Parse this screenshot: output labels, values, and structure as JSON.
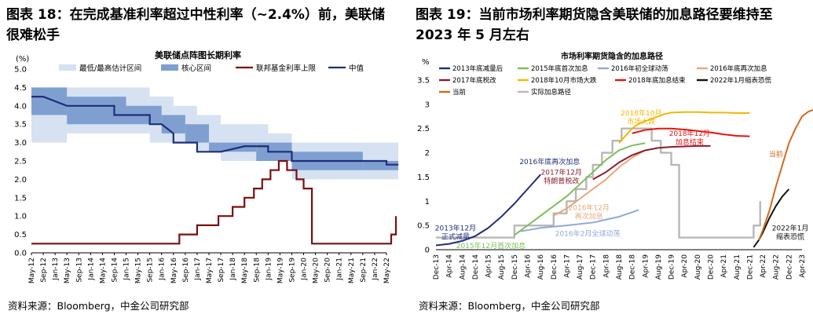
{
  "left": {
    "figure_title": "图表 18：在完成基准利率超过中性利率（~2.4%）前，美联储很难松手",
    "source": "资料来源：Bloomberg，中金公司研究部",
    "chart_data": {
      "type": "line",
      "title": "美联储点阵图长期利率",
      "ylabel": "(%)",
      "ylim": [
        0,
        5
      ],
      "yticks": [
        "0.0",
        "0.5",
        "1.0",
        "1.5",
        "2.0",
        "2.5",
        "3.0",
        "3.5",
        "4.0",
        "4.5",
        "5.0"
      ],
      "xticks": [
        "May-12",
        "Sep-12",
        "Jan-13",
        "May-13",
        "Sep-13",
        "Jan-14",
        "May-14",
        "Sep-14",
        "Jan-15",
        "May-15",
        "Sep-15",
        "Jan-16",
        "May-16",
        "Sep-16",
        "Jan-17",
        "May-17",
        "Sep-17",
        "Jan-18",
        "May-18",
        "Sep-18",
        "Jan-19",
        "May-19",
        "Sep-19",
        "Jan-20",
        "May-20",
        "Sep-20",
        "Jan-21",
        "May-21",
        "Sep-21",
        "Jan-22",
        "May-22"
      ],
      "colors": {
        "range": "#d6e2f2",
        "core": "#7f9fd0",
        "fed": "#7a0f0f",
        "median": "#1f2e7a"
      },
      "legend": [
        "最低/最高估计区间",
        "核心区间",
        "联邦基金利率上限",
        "中值"
      ],
      "series": [
        {
          "name": "最低/最高估计区间",
          "segments": [
            {
              "x": [
                0,
                3
              ],
              "low": 3.0,
              "high": 4.5
            },
            {
              "x": [
                3,
                10
              ],
              "low": 3.25,
              "high": 4.5
            },
            {
              "x": [
                10,
                12
              ],
              "low": 3.0,
              "high": 4.25
            },
            {
              "x": [
                12,
                14
              ],
              "low": 3.0,
              "high": 4.0
            },
            {
              "x": [
                14,
                16
              ],
              "low": 2.75,
              "high": 3.75
            },
            {
              "x": [
                16,
                20
              ],
              "low": 2.5,
              "high": 3.5
            },
            {
              "x": [
                20,
                22
              ],
              "low": 2.5,
              "high": 3.25
            },
            {
              "x": [
                22,
                30
              ],
              "low": 2.0,
              "high": 3.0
            },
            {
              "x": [
                30,
                31
              ],
              "low": 2.0,
              "high": 3.0
            }
          ]
        },
        {
          "name": "核心区间",
          "segments": [
            {
              "x": [
                0,
                3
              ],
              "low": 3.75,
              "high": 4.5
            },
            {
              "x": [
                3,
                8
              ],
              "low": 3.5,
              "high": 4.25
            },
            {
              "x": [
                8,
                11
              ],
              "low": 3.5,
              "high": 4.0
            },
            {
              "x": [
                11,
                13
              ],
              "low": 3.25,
              "high": 3.75
            },
            {
              "x": [
                13,
                15
              ],
              "low": 3.0,
              "high": 3.5
            },
            {
              "x": [
                15,
                19
              ],
              "low": 2.75,
              "high": 3.0
            },
            {
              "x": [
                19,
                22
              ],
              "low": 2.5,
              "high": 3.0
            },
            {
              "x": [
                22,
                28
              ],
              "low": 2.25,
              "high": 2.75
            },
            {
              "x": [
                28,
                31
              ],
              "low": 2.25,
              "high": 2.5
            }
          ]
        },
        {
          "name": "中值",
          "x": [
            0,
            1,
            1,
            3,
            3,
            7,
            7,
            10,
            10,
            11,
            11,
            12,
            12,
            14,
            14,
            16,
            16,
            18,
            18,
            20,
            20,
            22,
            22,
            29,
            29,
            30,
            30,
            31
          ],
          "values": [
            4.25,
            4.25,
            4.25,
            4.0,
            4.0,
            4.0,
            3.75,
            3.75,
            3.5,
            3.5,
            3.5,
            3.25,
            3.0,
            3.0,
            2.75,
            2.75,
            2.75,
            2.9,
            2.9,
            2.9,
            2.75,
            2.75,
            2.5,
            2.5,
            2.5,
            2.5,
            2.4,
            2.4
          ]
        },
        {
          "name": "联邦基金利率上限",
          "x": [
            0,
            12.5,
            12.5,
            14,
            14,
            15.8,
            15.8,
            17,
            17,
            18,
            18,
            18.8,
            18.8,
            19.5,
            19.5,
            20.2,
            20.2,
            20.9,
            20.9,
            21.6,
            21.6,
            22.4,
            22.4,
            23,
            23,
            23.7,
            23.7,
            25,
            25,
            30.4,
            30.4,
            30.8,
            30.8
          ],
          "values": [
            0.25,
            0.25,
            0.5,
            0.5,
            0.75,
            0.75,
            1.0,
            1.0,
            1.25,
            1.25,
            1.5,
            1.5,
            1.75,
            1.75,
            2.0,
            2.0,
            2.25,
            2.25,
            2.5,
            2.5,
            2.25,
            2.25,
            2.0,
            2.0,
            1.75,
            1.75,
            0.25,
            0.25,
            0.25,
            0.25,
            0.5,
            0.5,
            1.0
          ]
        }
      ]
    }
  },
  "right": {
    "figure_title": "图表 19：当前市场利率期货隐含美联储的加息路径要维持至 2023 年 5 月左右",
    "source": "资料来源：Bloomberg，中金公司研究部",
    "chart_data": {
      "type": "line",
      "title": "市场利率期货隐含的加息路径",
      "ylabel": "%",
      "ylim": [
        0,
        3.5
      ],
      "yticks": [
        "0",
        "0.5",
        "1",
        "1.5",
        "2",
        "2.5",
        "3",
        "3.5"
      ],
      "xticks": [
        "Dec-13",
        "Apr-14",
        "Aug-14",
        "Dec-14",
        "Apr-15",
        "Aug-15",
        "Dec-15",
        "Apr-16",
        "Aug-16",
        "Dec-16",
        "Apr-17",
        "Aug-17",
        "Dec-17",
        "Apr-18",
        "Aug-18",
        "Dec-18",
        "Apr-19",
        "Aug-19",
        "Dec-19",
        "Apr-20",
        "Aug-20",
        "Dec-20",
        "Apr-21",
        "Aug-21",
        "Dec-21",
        "Apr-22",
        "Aug-22",
        "Dec-22",
        "Apr-23"
      ],
      "legend": [
        "2013年底减量后",
        "2015年底首次加息",
        "2016年初全球动荡",
        "2016年底再次加息",
        "2017年底税改",
        "2018年10月市场大跌",
        "2018年底加息结束",
        "2022年1月缩表恐慌",
        "当前",
        "实际加息路径"
      ],
      "series": [
        {
          "name": "2013年底减量后",
          "color": "#1f2e7a",
          "x": [
            0,
            1,
            2,
            3,
            4,
            5,
            6,
            7,
            8
          ],
          "values": [
            0.09,
            0.12,
            0.18,
            0.28,
            0.45,
            0.68,
            0.95,
            1.25,
            1.55
          ]
        },
        {
          "name": "2015年底首次加息",
          "color": "#7fbf5a",
          "x": [
            6,
            7,
            8,
            9,
            10,
            11,
            12,
            13,
            14,
            15,
            16
          ],
          "values": [
            0.3,
            0.5,
            0.7,
            0.9,
            1.1,
            1.35,
            1.6,
            1.85,
            2.05,
            2.15,
            2.2
          ]
        },
        {
          "name": "2016年初全球动荡",
          "color": "#8fa9d8",
          "x": [
            6.5,
            8,
            10,
            12,
            14,
            15.5
          ],
          "values": [
            0.38,
            0.45,
            0.5,
            0.56,
            0.68,
            0.82
          ]
        },
        {
          "name": "2016年底再次加息",
          "color": "#e8a87c",
          "x": [
            9,
            10,
            11,
            12,
            13,
            14,
            15,
            16
          ],
          "values": [
            0.7,
            0.85,
            1.05,
            1.25,
            1.45,
            1.7,
            1.9,
            2.05
          ]
        },
        {
          "name": "2017年底税改",
          "color": "#8b1c2c",
          "x": [
            12,
            13,
            14,
            15,
            16,
            17,
            18,
            19,
            20,
            21
          ],
          "values": [
            1.45,
            1.6,
            1.8,
            1.95,
            2.05,
            2.1,
            2.12,
            2.13,
            2.14,
            2.14
          ]
        },
        {
          "name": "2018年10月市场大跌",
          "color": "#f2b705",
          "x": [
            14,
            14.5,
            15,
            15.5,
            16,
            16.5,
            17,
            17.5,
            18,
            19,
            20,
            21,
            22,
            23,
            24
          ],
          "values": [
            2.2,
            2.35,
            2.5,
            2.6,
            2.65,
            2.7,
            2.75,
            2.8,
            2.83,
            2.84,
            2.84,
            2.83,
            2.83,
            2.82,
            2.82
          ]
        },
        {
          "name": "2018年底加息结束",
          "color": "#e8140c",
          "x": [
            15,
            16,
            17,
            18,
            19,
            20,
            21,
            22,
            23,
            24
          ],
          "values": [
            2.4,
            2.47,
            2.5,
            2.5,
            2.48,
            2.45,
            2.42,
            2.38,
            2.35,
            2.34
          ]
        },
        {
          "name": "2022年1月缩表恐慌",
          "color": "#111111",
          "x": [
            24.3,
            24.7,
            25,
            25.5,
            26,
            26.5,
            27
          ],
          "values": [
            0.05,
            0.2,
            0.35,
            0.65,
            0.9,
            1.1,
            1.25
          ]
        },
        {
          "name": "当前",
          "color": "#d2691e",
          "x": [
            24.7,
            25,
            25.5,
            26,
            26.5,
            27,
            27.5,
            28,
            28.5,
            29,
            29.5,
            30
          ],
          "values": [
            0.2,
            0.4,
            0.8,
            1.3,
            1.75,
            2.2,
            2.5,
            2.75,
            2.85,
            2.9,
            2.93,
            2.94
          ]
        },
        {
          "name": "实际加息路径",
          "color": "#b7b7b7",
          "x": [
            0,
            6,
            6,
            9,
            9,
            10,
            10,
            10.7,
            10.7,
            11.5,
            11.5,
            12,
            12,
            12.7,
            12.7,
            13.5,
            13.5,
            14.2,
            14.2,
            15,
            15,
            16.5,
            16.5,
            17.2,
            17.2,
            18,
            18,
            18.6,
            18.6,
            24.3,
            24.3,
            24.8,
            24.8
          ],
          "values": [
            0.25,
            0.25,
            0.5,
            0.5,
            0.75,
            0.75,
            1.0,
            1.0,
            1.25,
            1.25,
            1.5,
            1.5,
            1.75,
            1.75,
            2.0,
            2.0,
            2.25,
            2.25,
            2.5,
            2.5,
            2.5,
            2.5,
            2.25,
            2.25,
            2.0,
            2.0,
            1.75,
            1.75,
            0.25,
            0.25,
            0.5,
            0.5,
            1.0
          ]
        }
      ],
      "annotations": [
        {
          "text": [
            "2013年12月",
            "正式减量"
          ],
          "x": 1.5,
          "y": 0.4,
          "color": "#1f2e7a"
        },
        {
          "text": [
            "2015年12月首次加息"
          ],
          "x": 4.2,
          "y": 0.03,
          "color": "#7fbf5a"
        },
        {
          "text": [
            "2016年底再次加息"
          ],
          "x": 8.7,
          "y": 1.77,
          "color": "#1f2e7a"
        },
        {
          "text": [
            "2017年12月",
            "特朗普税改"
          ],
          "x": 9.6,
          "y": 1.55,
          "color": "#8b1c2c"
        },
        {
          "text": [
            "2016年12月",
            "再次加息"
          ],
          "x": 11.7,
          "y": 0.82,
          "color": "#e8a87c"
        },
        {
          "text": [
            "2016年2月全球动荡"
          ],
          "x": 11.6,
          "y": 0.28,
          "color": "#8fa9d8"
        },
        {
          "text": [
            "2018年10月",
            "市场大跌"
          ],
          "x": 15.7,
          "y": 2.77,
          "color": "#f2b705"
        },
        {
          "text": [
            "2018年12月",
            "加息结束"
          ],
          "x": 19.4,
          "y": 2.35,
          "color": "#e8140c"
        },
        {
          "text": [
            "当前"
          ],
          "x": 26.0,
          "y": 1.92,
          "color": "#d2691e"
        },
        {
          "text": [
            "2022年1月",
            "缩表恐慌"
          ],
          "x": 27.1,
          "y": 0.4,
          "color": "#111111"
        }
      ]
    }
  }
}
